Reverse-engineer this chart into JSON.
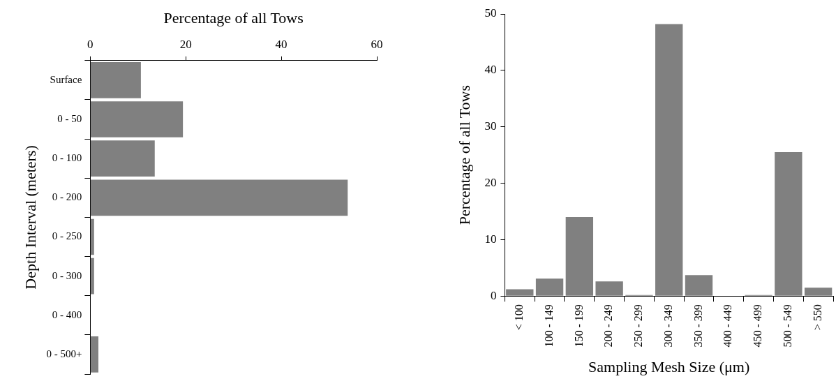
{
  "chart_data": [
    {
      "type": "bar",
      "orientation": "horizontal",
      "xlabel": "Percentage of all Tows",
      "ylabel": "Depth Interval (meters)",
      "categories": [
        "Surface",
        "0 - 50",
        "0 - 100",
        "0 - 200",
        "0 - 250",
        "0 - 300",
        "0 - 400",
        "0 - 500+"
      ],
      "values": [
        10.6,
        19.4,
        13.5,
        53.9,
        0.8,
        0.8,
        0,
        1.7
      ],
      "color": "#808080",
      "xlim": [
        0,
        60
      ],
      "xticks": [
        0,
        20,
        40,
        60
      ],
      "grid": false,
      "legend": false
    },
    {
      "type": "bar",
      "xlabel": "Sampling Mesh Size (μm)",
      "ylabel": "Percentage of all Tows",
      "categories": [
        "< 100",
        "100 - 149",
        "150 - 199",
        "200 - 249",
        "250 - 299",
        "300 - 349",
        "350 - 399",
        "400 - 449",
        "450 - 499",
        "500 - 549",
        "> 550"
      ],
      "values": [
        1.2,
        3.1,
        14.0,
        2.6,
        0.2,
        48.2,
        3.7,
        0,
        0.2,
        25.5,
        1.5
      ],
      "color": "#808080",
      "ylim": [
        0,
        50
      ],
      "yticks": [
        0,
        10,
        20,
        30,
        40,
        50
      ],
      "grid": false,
      "legend": false
    }
  ]
}
